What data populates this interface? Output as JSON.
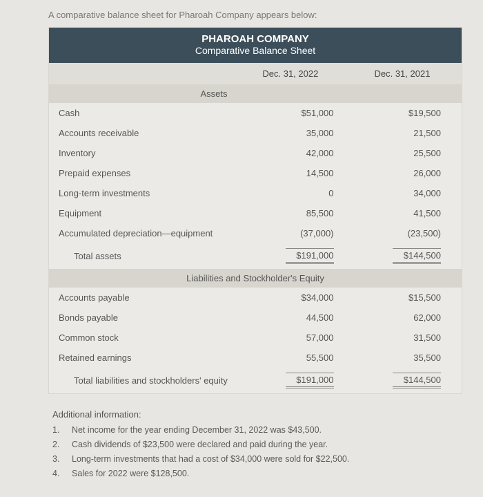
{
  "intro": "A comparative balance sheet for Pharoah Company appears below:",
  "company": "PHAROAH COMPANY",
  "subtitle": "Comparative Balance Sheet",
  "dates": {
    "col1": "Dec. 31, 2022",
    "col2": "Dec. 31, 2021"
  },
  "sections": {
    "assets_header": "Assets",
    "liab_header": "Liabilities and Stockholder's Equity"
  },
  "assets": [
    {
      "label": "Cash",
      "v1": "$51,000",
      "v2": "$19,500"
    },
    {
      "label": "Accounts receivable",
      "v1": "35,000",
      "v2": "21,500"
    },
    {
      "label": "Inventory",
      "v1": "42,000",
      "v2": "25,500"
    },
    {
      "label": "Prepaid expenses",
      "v1": "14,500",
      "v2": "26,000"
    },
    {
      "label": "Long-term investments",
      "v1": "0",
      "v2": "34,000"
    },
    {
      "label": "Equipment",
      "v1": "85,500",
      "v2": "41,500"
    },
    {
      "label": "Accumulated depreciation—equipment",
      "v1": "(37,000)",
      "v2": "(23,500)"
    }
  ],
  "assets_total": {
    "label": "Total assets",
    "v1": "$191,000",
    "v2": "$144,500"
  },
  "liab": [
    {
      "label": "Accounts payable",
      "v1": "$34,000",
      "v2": "$15,500"
    },
    {
      "label": "Bonds payable",
      "v1": "44,500",
      "v2": "62,000"
    },
    {
      "label": "Common stock",
      "v1": "57,000",
      "v2": "31,500"
    },
    {
      "label": "Retained earnings",
      "v1": "55,500",
      "v2": "35,500"
    }
  ],
  "liab_total": {
    "label": "Total liabilities and stockholders' equity",
    "v1": "$191,000",
    "v2": "$144,500"
  },
  "additional": {
    "heading": "Additional information:",
    "items": [
      "Net income for the year ending December 31, 2022 was $43,500.",
      "Cash dividends of $23,500 were declared and paid during the year.",
      "Long-term investments that had a cost of $34,000 were sold for $22,500.",
      "Sales for 2022 were $128,500."
    ]
  }
}
